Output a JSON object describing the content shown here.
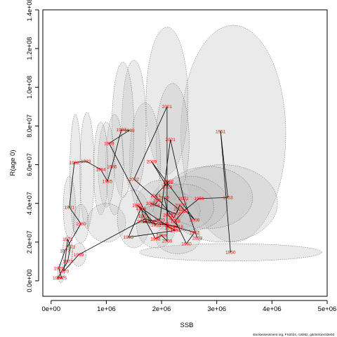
{
  "chart_data": {
    "type": "scatter",
    "title": "",
    "xlabel": "SSB",
    "ylabel": "R(age 0)",
    "xlim": [
      -150000,
      5000000
    ],
    "ylim": [
      -8000000,
      140000000
    ],
    "xticks": [
      0,
      1000000,
      2000000,
      3000000,
      4000000,
      5000000
    ],
    "xtick_labels": [
      "0e+00",
      "1e+06",
      "2e+06",
      "3e+06",
      "4e+06",
      "5e+06"
    ],
    "yticks": [
      0,
      20000000,
      40000000,
      60000000,
      80000000,
      100000000,
      120000000,
      140000000
    ],
    "ytick_labels": [
      "0.0e+00",
      "2.0e+07",
      "4.0e+07",
      "6.0e+07",
      "8.0e+07",
      "1.0e+08",
      "1.2e+08",
      "1.4e+08"
    ],
    "point_color": "#ff0000",
    "line_color": "#000000",
    "ellipse_fill": "#bebebe",
    "credit": "stockassessment.org, FS2024, r18362, gitc9c81ec53e0d",
    "points": [
      {
        "label": "1950",
        "x": 3250000,
        "y": 14700000
      },
      {
        "label": "1951",
        "x": 3070000,
        "y": 77200000
      },
      {
        "label": "1953",
        "x": 3200000,
        "y": 43000000
      },
      {
        "label": "1956",
        "x": 2680000,
        "y": 42500000
      },
      {
        "label": "1957",
        "x": 2400000,
        "y": 36000000
      },
      {
        "label": "1958",
        "x": 2250000,
        "y": 31000000
      },
      {
        "label": "1960",
        "x": 2450000,
        "y": 19200000
      },
      {
        "label": "1962",
        "x": 2600000,
        "y": 25000000
      },
      {
        "label": "1965",
        "x": 2050000,
        "y": 29500000
      },
      {
        "label": "1967",
        "x": 1700000,
        "y": 32000000
      },
      {
        "label": "1969",
        "x": 500000,
        "y": 13500000
      },
      {
        "label": "1970",
        "x": 230000,
        "y": 5000000
      },
      {
        "label": "1971",
        "x": 300000,
        "y": 21500000
      },
      {
        "label": "1972",
        "x": 350000,
        "y": 17500000
      },
      {
        "label": "1973",
        "x": 300000,
        "y": 10000000
      },
      {
        "label": "1974",
        "x": 120000,
        "y": 1500000
      },
      {
        "label": "1975",
        "x": 190000,
        "y": 1500000
      },
      {
        "label": "1976",
        "x": 140000,
        "y": 6500000
      },
      {
        "label": "1977",
        "x": 250000,
        "y": 15500000
      },
      {
        "label": "1980",
        "x": 540000,
        "y": 29500000
      },
      {
        "label": "1981",
        "x": 330000,
        "y": 38000000
      },
      {
        "label": "1982",
        "x": 420000,
        "y": 61000000
      },
      {
        "label": "1983",
        "x": 630000,
        "y": 61800000
      },
      {
        "label": "1984",
        "x": 900000,
        "y": 57500000
      },
      {
        "label": "1985",
        "x": 1020000,
        "y": 51500000
      },
      {
        "label": "1986",
        "x": 1100000,
        "y": 59000000
      },
      {
        "label": "1987",
        "x": 1270000,
        "y": 78000000
      },
      {
        "label": "1988",
        "x": 1420000,
        "y": 77800000
      },
      {
        "label": "1989",
        "x": 1050000,
        "y": 71000000
      },
      {
        "label": "1990",
        "x": 1800000,
        "y": 30500000
      },
      {
        "label": "1991",
        "x": 1900000,
        "y": 29000000
      },
      {
        "label": "1992",
        "x": 1560000,
        "y": 39000000
      },
      {
        "label": "1993",
        "x": 2150000,
        "y": 27500000
      },
      {
        "label": "1994",
        "x": 2250000,
        "y": 26000000
      },
      {
        "label": "1995",
        "x": 1400000,
        "y": 22500000
      },
      {
        "label": "1996",
        "x": 1630000,
        "y": 37500000
      },
      {
        "label": "1997",
        "x": 1670000,
        "y": 33500000
      },
      {
        "label": "1998",
        "x": 1890000,
        "y": 21700000
      },
      {
        "label": "1999",
        "x": 2000000,
        "y": 23500000
      },
      {
        "label": "2000",
        "x": 2100000,
        "y": 20500000
      },
      {
        "label": "2001",
        "x": 2100000,
        "y": 90000000
      },
      {
        "label": "2002",
        "x": 1500000,
        "y": 52500000
      },
      {
        "label": "2003",
        "x": 1940000,
        "y": 41500000
      },
      {
        "label": "2004",
        "x": 1880000,
        "y": 39200000
      },
      {
        "label": "2005",
        "x": 1810000,
        "y": 40000000
      },
      {
        "label": "2006",
        "x": 2260000,
        "y": 34500000
      },
      {
        "label": "2007",
        "x": 2330000,
        "y": 39000000
      },
      {
        "label": "2008",
        "x": 2600000,
        "y": 31500000
      },
      {
        "label": "2009",
        "x": 1820000,
        "y": 61600000
      },
      {
        "label": "2010",
        "x": 2100000,
        "y": 48500000
      },
      {
        "label": "2011",
        "x": 2120000,
        "y": 50800000
      },
      {
        "label": "2012",
        "x": 2130000,
        "y": 51500000
      },
      {
        "label": "2013",
        "x": 1890000,
        "y": 44000000
      },
      {
        "label": "2014",
        "x": 2220000,
        "y": 32500000
      },
      {
        "label": "2015",
        "x": 2310000,
        "y": 37000000
      },
      {
        "label": "2016",
        "x": 2050000,
        "y": 43000000
      },
      {
        "label": "2017",
        "x": 2120000,
        "y": 34000000
      },
      {
        "label": "2018",
        "x": 2300000,
        "y": 28000000
      },
      {
        "label": "2019",
        "x": 1650000,
        "y": 30500000
      },
      {
        "label": "2020",
        "x": 1970000,
        "y": 31500000
      },
      {
        "label": "2021",
        "x": 2160000,
        "y": 73000000
      },
      {
        "label": "2022",
        "x": 2400000,
        "y": 42500000
      },
      {
        "label": "2023",
        "x": 2650000,
        "y": 22000000
      }
    ],
    "connect_order": [
      "1950",
      "1951",
      "1953",
      "1956",
      "1957",
      "1958",
      "1960",
      "1962",
      "1965",
      "1967",
      "1969",
      "1970",
      "1971",
      "1972",
      "1973",
      "1974",
      "1975",
      "1976",
      "1977",
      "1980",
      "1981",
      "1982",
      "1983",
      "1984",
      "1985",
      "1986",
      "1987",
      "1988",
      "1989",
      "1990",
      "1991",
      "1992",
      "1993",
      "1994",
      "1995",
      "1996",
      "1997",
      "1998",
      "1999",
      "2000",
      "2001",
      "2002",
      "2003",
      "2004",
      "2005",
      "2006",
      "2007",
      "2008",
      "2009",
      "2010",
      "2011",
      "2012",
      "2013",
      "2014",
      "2015",
      "2016",
      "2017",
      "2018",
      "2019",
      "2020",
      "2021",
      "2022",
      "2023"
    ],
    "ellipses": [
      {
        "cx": 3250000,
        "cy": 14700000,
        "rx": 1650000,
        "ry": 4500000
      },
      {
        "cx": 3300000,
        "cy": 76000000,
        "rx": 950000,
        "ry": 56000000
      },
      {
        "cx": 3100000,
        "cy": 40000000,
        "rx": 1000000,
        "ry": 20000000
      },
      {
        "cx": 2850000,
        "cy": 43000000,
        "rx": 800000,
        "ry": 16000000
      },
      {
        "cx": 2500000,
        "cy": 40000000,
        "rx": 700000,
        "ry": 14000000
      },
      {
        "cx": 2200000,
        "cy": 36000000,
        "rx": 500000,
        "ry": 10000000
      },
      {
        "cx": 2100000,
        "cy": 93000000,
        "rx": 380000,
        "ry": 38000000
      },
      {
        "cx": 2200000,
        "cy": 72000000,
        "rx": 300000,
        "ry": 30000000
      },
      {
        "cx": 1700000,
        "cy": 62000000,
        "rx": 280000,
        "ry": 30000000
      },
      {
        "cx": 1500000,
        "cy": 80000000,
        "rx": 220000,
        "ry": 34000000
      },
      {
        "cx": 1300000,
        "cy": 78000000,
        "rx": 200000,
        "ry": 35000000
      },
      {
        "cx": 1150000,
        "cy": 60000000,
        "rx": 160000,
        "ry": 26000000
      },
      {
        "cx": 1000000,
        "cy": 60000000,
        "rx": 150000,
        "ry": 22000000
      },
      {
        "cx": 900000,
        "cy": 58000000,
        "rx": 130000,
        "ry": 24000000
      },
      {
        "cx": 650000,
        "cy": 57000000,
        "rx": 130000,
        "ry": 30000000
      },
      {
        "cx": 440000,
        "cy": 55000000,
        "rx": 100000,
        "ry": 31000000
      },
      {
        "cx": 330000,
        "cy": 38000000,
        "rx": 110000,
        "ry": 16000000
      },
      {
        "cx": 540000,
        "cy": 29500000,
        "rx": 140000,
        "ry": 10000000
      },
      {
        "cx": 1000000,
        "cy": 30000000,
        "rx": 350000,
        "ry": 10000000
      },
      {
        "cx": 1500000,
        "cy": 32000000,
        "rx": 300000,
        "ry": 15000000
      },
      {
        "cx": 1900000,
        "cy": 28000000,
        "rx": 350000,
        "ry": 11000000
      },
      {
        "cx": 2300000,
        "cy": 22000000,
        "rx": 400000,
        "ry": 8000000
      },
      {
        "cx": 500000,
        "cy": 13500000,
        "rx": 130000,
        "ry": 6000000
      },
      {
        "cx": 300000,
        "cy": 15000000,
        "rx": 90000,
        "ry": 8000000
      },
      {
        "cx": 180000,
        "cy": 4000000,
        "rx": 60000,
        "ry": 5000000
      },
      {
        "cx": 2400000,
        "cy": 38000000,
        "rx": 550000,
        "ry": 12000000
      },
      {
        "cx": 2000000,
        "cy": 40000000,
        "rx": 450000,
        "ry": 12000000
      }
    ]
  }
}
